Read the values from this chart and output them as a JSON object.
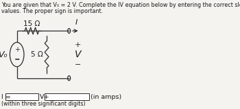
{
  "title_line1": "You are given that V₀ = 2 V. Complete the IV equation below by entering the correct slope and intercept",
  "title_line2": "values. The proper sign is important.",
  "resistor1_label": "15 Ω",
  "resistor2_label": "5 Ω",
  "source_label": "V₀",
  "current_label": "I",
  "voltage_label": "V",
  "footer_left": "I =",
  "footer_mid": "V+",
  "footer_right": "(in amps)",
  "footer_sub": "(within three significant digits)",
  "bg_color": "#f5f3ef",
  "text_color": "#1a1a1a",
  "line_color": "#2a2a2a",
  "font_size_title": 5.8,
  "font_size_circuit": 7.5,
  "font_size_footer": 6.8
}
